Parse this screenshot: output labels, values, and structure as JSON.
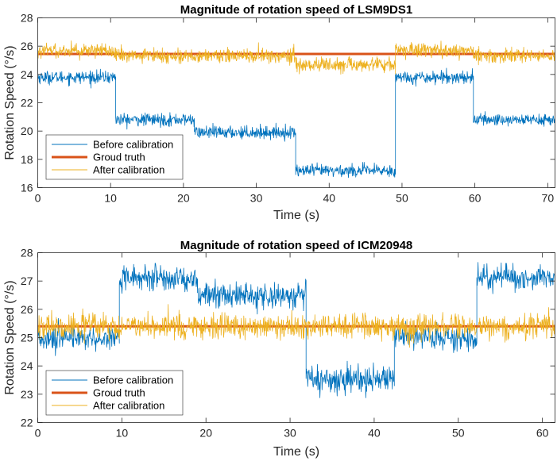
{
  "chart_data": [
    {
      "type": "line",
      "title": "Magnitude of rotation speed of LSM9DS1",
      "xlabel": "Time (s)",
      "ylabel": "Rotation Speed (°/s)",
      "xlim": [
        0,
        71
      ],
      "ylim": [
        16,
        28
      ],
      "xticks": [
        0,
        10,
        20,
        30,
        40,
        50,
        60,
        70
      ],
      "yticks": [
        16,
        18,
        20,
        22,
        24,
        26,
        28
      ],
      "grid": false,
      "legend_position": "bottom-left",
      "series": [
        {
          "name": "Before calibration",
          "color": "#0072BD",
          "noise": 0.22,
          "segments": [
            {
              "start": 0,
              "end": 10.7,
              "level": 23.8
            },
            {
              "start": 10.7,
              "end": 21.5,
              "level": 20.8
            },
            {
              "start": 21.5,
              "end": 35.4,
              "level": 19.9
            },
            {
              "start": 35.4,
              "end": 49.1,
              "level": 17.2
            },
            {
              "start": 49.1,
              "end": 59.8,
              "level": 23.8
            },
            {
              "start": 59.8,
              "end": 71,
              "level": 20.8
            }
          ]
        },
        {
          "name": "Groud truth",
          "color": "#D95319",
          "value": 25.45
        },
        {
          "name": "After calibration",
          "color": "#EDB120",
          "noise": 0.25,
          "segments": [
            {
              "start": 0,
              "end": 10.7,
              "level": 25.7
            },
            {
              "start": 10.7,
              "end": 21.5,
              "level": 25.3
            },
            {
              "start": 21.5,
              "end": 35.4,
              "level": 25.3
            },
            {
              "start": 35.4,
              "end": 49.1,
              "level": 24.7
            },
            {
              "start": 49.1,
              "end": 59.8,
              "level": 25.7
            },
            {
              "start": 59.8,
              "end": 71,
              "level": 25.3
            }
          ]
        }
      ]
    },
    {
      "type": "line",
      "title": "Magnitude of rotation speed of ICM20948",
      "xlabel": "Time (s)",
      "ylabel": "Rotation Speed (°/s)",
      "xlim": [
        0,
        61.5
      ],
      "ylim": [
        22,
        28
      ],
      "xticks": [
        0,
        10,
        20,
        30,
        40,
        50,
        60
      ],
      "yticks": [
        22,
        23,
        24,
        25,
        26,
        27,
        28
      ],
      "grid": false,
      "legend_position": "bottom-left",
      "series": [
        {
          "name": "Before calibration",
          "color": "#0072BD",
          "noise": 0.22,
          "segments": [
            {
              "start": 0,
              "end": 9.7,
              "level": 25.0
            },
            {
              "start": 9.7,
              "end": 19.0,
              "level": 27.1
            },
            {
              "start": 19.0,
              "end": 31.9,
              "level": 26.5
            },
            {
              "start": 31.9,
              "end": 42.4,
              "level": 23.5
            },
            {
              "start": 42.4,
              "end": 52.2,
              "level": 25.0
            },
            {
              "start": 52.2,
              "end": 61.5,
              "level": 27.1
            }
          ]
        },
        {
          "name": "Groud truth",
          "color": "#D95319",
          "value": 25.4
        },
        {
          "name": "After calibration",
          "color": "#EDB120",
          "noise": 0.22,
          "segments": [
            {
              "start": 0,
              "end": 61.5,
              "level": 25.4
            }
          ]
        }
      ]
    }
  ]
}
